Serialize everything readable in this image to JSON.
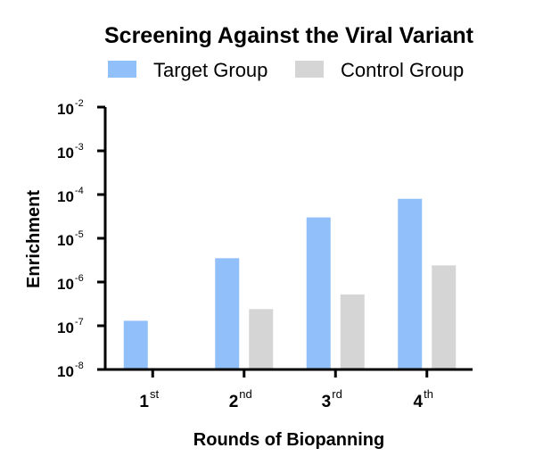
{
  "chart_data": {
    "type": "bar",
    "title": "Screening Against the Viral Variant",
    "xlabel": "Rounds of Biopanning",
    "ylabel": "Enrichment",
    "y_scale": "log",
    "ylim": [
      1e-08,
      0.01
    ],
    "y_ticks": [
      {
        "base": "10",
        "exp": "-8",
        "value": 1e-08
      },
      {
        "base": "10",
        "exp": "-7",
        "value": 1e-07
      },
      {
        "base": "10",
        "exp": "-6",
        "value": 1e-06
      },
      {
        "base": "10",
        "exp": "-5",
        "value": 1e-05
      },
      {
        "base": "10",
        "exp": "-4",
        "value": 0.0001
      },
      {
        "base": "10",
        "exp": "-3",
        "value": 0.001
      },
      {
        "base": "10",
        "exp": "-2",
        "value": 0.01
      }
    ],
    "categories": [
      {
        "main": "1",
        "sup": "st"
      },
      {
        "main": "2",
        "sup": "nd"
      },
      {
        "main": "3",
        "sup": "rd"
      },
      {
        "main": "4",
        "sup": "th"
      }
    ],
    "series": [
      {
        "name": "Target Group",
        "color": "#90bff9",
        "values": [
          1.3e-07,
          3.5e-06,
          3e-05,
          8e-05
        ]
      },
      {
        "name": "Control Group",
        "color": "#d5d5d5",
        "values": [
          null,
          2.4e-07,
          5.2e-07,
          2.4e-06
        ]
      }
    ],
    "legend_position": "top",
    "grid": false
  }
}
